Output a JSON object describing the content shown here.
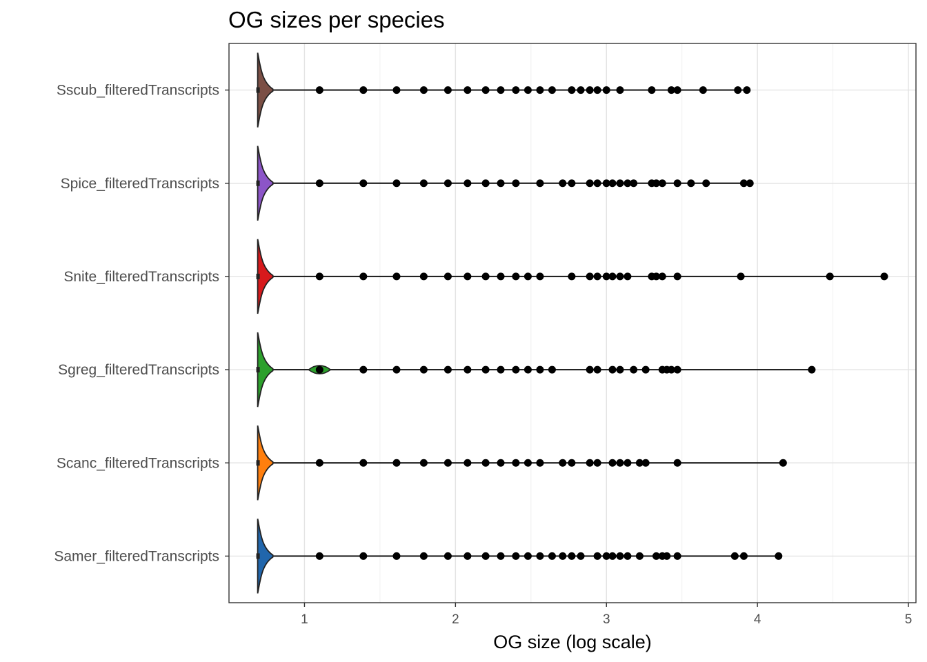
{
  "chart_data": {
    "type": "violin",
    "title": "OG sizes per species",
    "xlabel": "OG size (log scale)",
    "ylabel": "",
    "xlim": [
      0.5,
      5.05
    ],
    "xticks": [
      1,
      2,
      3,
      4,
      5
    ],
    "grid": true,
    "legend": "none",
    "orientation": "horizontal",
    "categories": [
      "Samer_filteredTranscripts",
      "Scanc_filteredTranscripts",
      "Sgreg_filteredTranscripts",
      "Snite_filteredTranscripts",
      "Spice_filteredTranscripts",
      "Sscub_filteredTranscripts"
    ],
    "series": [
      {
        "name": "Samer_filteredTranscripts",
        "color": "#2166ac",
        "min": 0.69,
        "max": 4.14,
        "outliers": [
          1.1,
          1.39,
          1.61,
          1.79,
          1.95,
          2.08,
          2.2,
          2.3,
          2.4,
          2.48,
          2.56,
          2.64,
          2.71,
          2.77,
          2.83,
          2.94,
          3.0,
          3.04,
          3.09,
          3.14,
          3.22,
          3.33,
          3.37,
          3.4,
          3.47,
          3.85,
          3.91,
          4.14
        ]
      },
      {
        "name": "Scanc_filteredTranscripts",
        "color": "#ff7f0e",
        "min": 0.69,
        "max": 4.17,
        "outliers": [
          1.1,
          1.39,
          1.61,
          1.79,
          1.95,
          2.08,
          2.2,
          2.3,
          2.4,
          2.48,
          2.56,
          2.71,
          2.77,
          2.89,
          2.94,
          3.04,
          3.09,
          3.14,
          3.22,
          3.26,
          3.47,
          4.17
        ]
      },
      {
        "name": "Sgreg_filteredTranscripts",
        "color": "#2ca02c",
        "min": 0.69,
        "max": 4.36,
        "outliers": [
          1.1,
          1.39,
          1.61,
          1.79,
          1.95,
          2.08,
          2.2,
          2.3,
          2.4,
          2.48,
          2.56,
          2.64,
          2.89,
          2.94,
          3.04,
          3.09,
          3.18,
          3.26,
          3.37,
          3.4,
          3.43,
          3.47,
          4.36
        ]
      },
      {
        "name": "Snite_filteredTranscripts",
        "color": "#d7191c",
        "min": 0.69,
        "max": 4.84,
        "outliers": [
          1.1,
          1.39,
          1.61,
          1.79,
          1.95,
          2.08,
          2.2,
          2.3,
          2.4,
          2.48,
          2.56,
          2.77,
          2.89,
          2.94,
          3.0,
          3.04,
          3.09,
          3.14,
          3.3,
          3.33,
          3.37,
          3.47,
          3.89,
          4.48,
          4.84
        ]
      },
      {
        "name": "Spice_filteredTranscripts",
        "color": "#8c55c8",
        "min": 0.69,
        "max": 3.95,
        "outliers": [
          1.1,
          1.39,
          1.61,
          1.79,
          1.95,
          2.08,
          2.2,
          2.3,
          2.4,
          2.56,
          2.71,
          2.77,
          2.89,
          2.94,
          3.0,
          3.04,
          3.09,
          3.14,
          3.18,
          3.3,
          3.33,
          3.37,
          3.47,
          3.56,
          3.66,
          3.91,
          3.95
        ]
      },
      {
        "name": "Sscub_filteredTranscripts",
        "color": "#7b4f45",
        "min": 0.69,
        "max": 3.93,
        "outliers": [
          1.1,
          1.39,
          1.61,
          1.79,
          1.95,
          2.08,
          2.2,
          2.3,
          2.4,
          2.48,
          2.56,
          2.64,
          2.77,
          2.83,
          2.89,
          2.94,
          3.0,
          3.09,
          3.3,
          3.43,
          3.47,
          3.64,
          3.87,
          3.93
        ]
      }
    ]
  }
}
